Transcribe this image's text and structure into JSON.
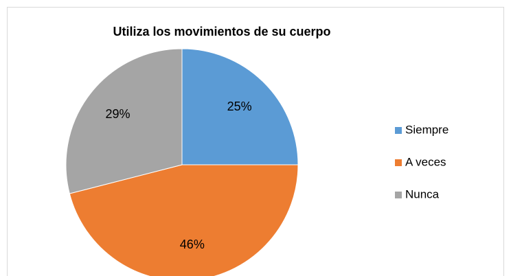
{
  "chart_data": {
    "type": "pie",
    "title": "Utiliza los movimientos de su cuerpo",
    "categories": [
      "Siempre",
      "A veces",
      "Nunca"
    ],
    "values": [
      25,
      46,
      29
    ],
    "value_labels": [
      "25%",
      "46%",
      "29%"
    ],
    "colors": [
      "#5b9bd5",
      "#ed7d31",
      "#a5a5a5"
    ],
    "legend": "right"
  }
}
